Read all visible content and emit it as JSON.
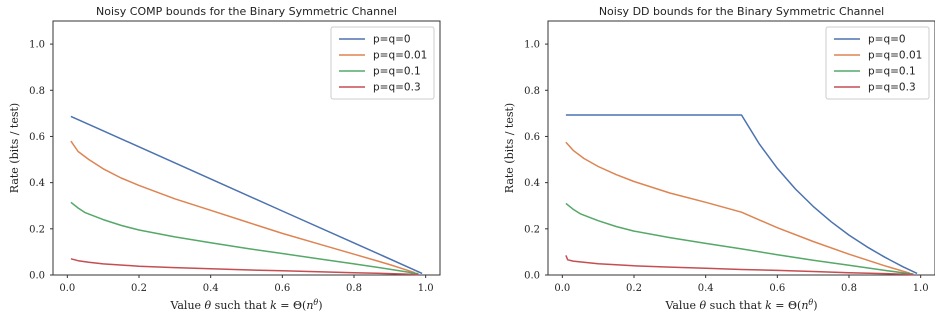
{
  "chart_data": [
    {
      "type": "line",
      "title": "Noisy COMP bounds for the Binary Symmetric Channel",
      "xlabel": "Value θ such that k = Θ(n^θ)",
      "ylabel": "Rate (bits / test)",
      "xlim": [
        -0.04,
        1.04
      ],
      "ylim": [
        0,
        1.1
      ],
      "xticks": [
        "0.0",
        "0.2",
        "0.4",
        "0.6",
        "0.8",
        "1.0"
      ],
      "xtick_values": [
        0,
        0.2,
        0.4,
        0.6,
        0.8,
        1.0
      ],
      "yticks": [
        "0.0",
        "0.2",
        "0.4",
        "0.6",
        "0.8",
        "1.0"
      ],
      "ytick_values": [
        0,
        0.2,
        0.4,
        0.6,
        0.8,
        1.0
      ],
      "grid": false,
      "legend_position": "top-right",
      "series": [
        {
          "name": "p=q=0",
          "color": "#4c72b0",
          "x": [
            0.01,
            0.2,
            0.4,
            0.6,
            0.8,
            0.99
          ],
          "y": [
            0.687,
            0.555,
            0.416,
            0.277,
            0.139,
            0.007
          ]
        },
        {
          "name": "p=q=0.01",
          "color": "#dd8452",
          "x": [
            0.01,
            0.03,
            0.06,
            0.1,
            0.15,
            0.2,
            0.3,
            0.4,
            0.5,
            0.6,
            0.7,
            0.8,
            0.9,
            0.97
          ],
          "y": [
            0.58,
            0.535,
            0.5,
            0.46,
            0.42,
            0.388,
            0.33,
            0.28,
            0.23,
            0.18,
            0.135,
            0.09,
            0.045,
            0.01
          ]
        },
        {
          "name": "p=q=0.1",
          "color": "#55a868",
          "x": [
            0.01,
            0.03,
            0.05,
            0.1,
            0.15,
            0.2,
            0.3,
            0.4,
            0.5,
            0.6,
            0.7,
            0.8,
            0.9,
            0.98
          ],
          "y": [
            0.315,
            0.29,
            0.27,
            0.24,
            0.215,
            0.195,
            0.165,
            0.14,
            0.115,
            0.093,
            0.07,
            0.048,
            0.025,
            0.005
          ]
        },
        {
          "name": "p=q=0.3",
          "color": "#c44e52",
          "x": [
            0.01,
            0.03,
            0.06,
            0.1,
            0.2,
            0.3,
            0.4,
            0.5,
            0.6,
            0.7,
            0.8,
            0.9,
            0.98
          ],
          "y": [
            0.07,
            0.062,
            0.055,
            0.048,
            0.038,
            0.032,
            0.027,
            0.022,
            0.018,
            0.014,
            0.01,
            0.006,
            0.002
          ]
        }
      ]
    },
    {
      "type": "line",
      "title": "Noisy DD bounds for the Binary Symmetric Channel",
      "xlabel": "Value θ such that k = Θ(n^θ)",
      "ylabel": "Rate (bits / test)",
      "xlim": [
        -0.04,
        1.04
      ],
      "ylim": [
        0,
        1.1
      ],
      "xticks": [
        "0.0",
        "0.2",
        "0.4",
        "0.6",
        "0.8",
        "1.0"
      ],
      "xtick_values": [
        0,
        0.2,
        0.4,
        0.6,
        0.8,
        1.0
      ],
      "yticks": [
        "0.0",
        "0.2",
        "0.4",
        "0.6",
        "0.8",
        "1.0"
      ],
      "ytick_values": [
        0,
        0.2,
        0.4,
        0.6,
        0.8,
        1.0
      ],
      "grid": false,
      "legend_position": "top-right",
      "series": [
        {
          "name": "p=q=0",
          "color": "#4c72b0",
          "x": [
            0.01,
            0.5,
            0.55,
            0.6,
            0.65,
            0.7,
            0.75,
            0.8,
            0.85,
            0.9,
            0.95,
            0.99
          ],
          "y": [
            0.693,
            0.693,
            0.567,
            0.462,
            0.373,
            0.297,
            0.231,
            0.173,
            0.122,
            0.077,
            0.036,
            0.007
          ]
        },
        {
          "name": "p=q=0.01",
          "color": "#dd8452",
          "x": [
            0.01,
            0.03,
            0.06,
            0.1,
            0.15,
            0.2,
            0.3,
            0.4,
            0.5,
            0.6,
            0.7,
            0.8,
            0.9,
            0.97
          ],
          "y": [
            0.575,
            0.54,
            0.505,
            0.47,
            0.435,
            0.405,
            0.355,
            0.315,
            0.272,
            0.205,
            0.145,
            0.09,
            0.04,
            0.008
          ]
        },
        {
          "name": "p=q=0.1",
          "color": "#55a868",
          "x": [
            0.01,
            0.03,
            0.05,
            0.1,
            0.15,
            0.2,
            0.3,
            0.4,
            0.5,
            0.6,
            0.7,
            0.8,
            0.9,
            0.98
          ],
          "y": [
            0.31,
            0.285,
            0.265,
            0.235,
            0.21,
            0.19,
            0.162,
            0.137,
            0.113,
            0.088,
            0.064,
            0.042,
            0.02,
            0.004
          ]
        },
        {
          "name": "p=q=0.3",
          "color": "#c44e52",
          "x": [
            0.01,
            0.015,
            0.03,
            0.06,
            0.1,
            0.2,
            0.3,
            0.4,
            0.5,
            0.6,
            0.7,
            0.8,
            0.9,
            0.98
          ],
          "y": [
            0.085,
            0.066,
            0.06,
            0.055,
            0.049,
            0.04,
            0.034,
            0.029,
            0.024,
            0.02,
            0.015,
            0.01,
            0.006,
            0.002
          ]
        }
      ]
    }
  ]
}
